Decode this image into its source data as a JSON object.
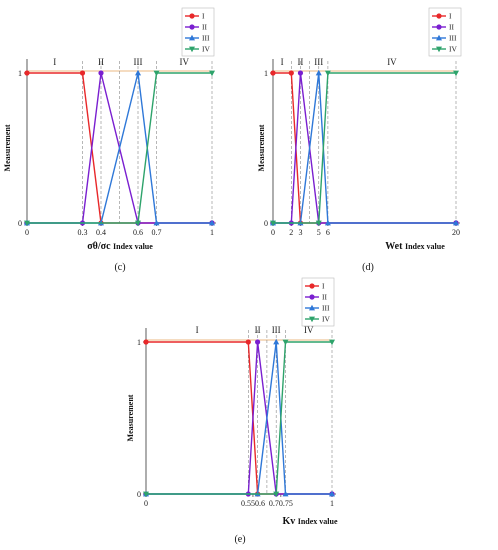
{
  "chart_data": [
    {
      "type": "line",
      "panel": "(c)",
      "ylabel": "Measurement",
      "xlabel_main": "σθ/σc",
      "xlabel_rest": "Index value",
      "x_ticks": [
        "0",
        "0.3",
        "0.4",
        "0.6",
        "0.7",
        "1"
      ],
      "x_tick_values": [
        0,
        0.3,
        0.4,
        0.6,
        0.7,
        1
      ],
      "y_ticks": [
        "0",
        "1"
      ],
      "xlim": [
        0,
        1
      ],
      "ylim": [
        0,
        1
      ],
      "regions": [
        {
          "label": "I",
          "from": 0,
          "to": 0.3
        },
        {
          "label": "II",
          "from": 0.3,
          "to": 0.5
        },
        {
          "label": "III",
          "from": 0.5,
          "to": 0.7
        },
        {
          "label": "IV",
          "from": 0.7,
          "to": 1
        }
      ],
      "dashed_x": [
        0.3,
        0.4,
        0.5,
        0.6,
        0.7,
        1
      ],
      "series": [
        {
          "name": "I",
          "color": "#e8282a",
          "marker": "circle",
          "x": [
            0,
            0.3,
            0.4,
            1
          ],
          "y": [
            1,
            1,
            0,
            0
          ]
        },
        {
          "name": "II",
          "color": "#7a1fd0",
          "marker": "circle",
          "x": [
            0,
            0.3,
            0.4,
            0.6,
            1
          ],
          "y": [
            0,
            0,
            1,
            0,
            0
          ]
        },
        {
          "name": "III",
          "color": "#2f78d8",
          "marker": "triangle",
          "x": [
            0,
            0.4,
            0.6,
            0.7,
            1
          ],
          "y": [
            0,
            0,
            1,
            0,
            0
          ]
        },
        {
          "name": "IV",
          "color": "#2ea36b",
          "marker": "triangle-down",
          "x": [
            0,
            0.6,
            0.7,
            1
          ],
          "y": [
            0,
            0,
            1,
            1
          ]
        }
      ]
    },
    {
      "type": "line",
      "panel": "(d)",
      "ylabel": "Measurement",
      "xlabel_main": "Wet",
      "xlabel_rest": "Index value",
      "x_ticks": [
        "0",
        "2",
        "3",
        "5",
        "6",
        "20"
      ],
      "x_tick_values": [
        0,
        2,
        3,
        5,
        6,
        20
      ],
      "y_ticks": [
        "0",
        "1"
      ],
      "xlim": [
        0,
        20
      ],
      "ylim": [
        0,
        1
      ],
      "regions": [
        {
          "label": "I",
          "from": 0,
          "to": 2
        },
        {
          "label": "II",
          "from": 2,
          "to": 4
        },
        {
          "label": "III",
          "from": 4,
          "to": 6
        },
        {
          "label": "IV",
          "from": 6,
          "to": 20
        }
      ],
      "dashed_x": [
        2,
        3,
        4,
        5,
        6,
        20
      ],
      "series": [
        {
          "name": "I",
          "color": "#e8282a",
          "marker": "circle",
          "x": [
            0,
            2,
            3,
            20
          ],
          "y": [
            1,
            1,
            0,
            0
          ]
        },
        {
          "name": "II",
          "color": "#7a1fd0",
          "marker": "circle",
          "x": [
            0,
            2,
            3,
            5,
            20
          ],
          "y": [
            0,
            0,
            1,
            0,
            0
          ]
        },
        {
          "name": "III",
          "color": "#2f78d8",
          "marker": "triangle",
          "x": [
            0,
            3,
            5,
            6,
            20
          ],
          "y": [
            0,
            0,
            1,
            0,
            0
          ]
        },
        {
          "name": "IV",
          "color": "#2ea36b",
          "marker": "triangle-down",
          "x": [
            0,
            5,
            6,
            20
          ],
          "y": [
            0,
            0,
            1,
            1
          ]
        }
      ]
    },
    {
      "type": "line",
      "panel": "(e)",
      "ylabel": "Measurement",
      "xlabel_main": "Kv",
      "xlabel_rest": "Index value",
      "x_ticks": [
        "0",
        "0.550.6",
        "0.70.75",
        "1"
      ],
      "x_tick_values": [
        0,
        0.575,
        0.725,
        1
      ],
      "y_ticks": [
        "0",
        "1"
      ],
      "xlim": [
        0,
        1
      ],
      "ylim": [
        0,
        1
      ],
      "regions": [
        {
          "label": "I",
          "from": 0,
          "to": 0.55
        },
        {
          "label": "II",
          "from": 0.55,
          "to": 0.65
        },
        {
          "label": "III",
          "from": 0.65,
          "to": 0.75
        },
        {
          "label": "IV",
          "from": 0.75,
          "to": 1
        }
      ],
      "dashed_x": [
        0.55,
        0.6,
        0.65,
        0.7,
        0.75,
        1
      ],
      "series": [
        {
          "name": "I",
          "color": "#e8282a",
          "marker": "circle",
          "x": [
            0,
            0.55,
            0.6,
            1
          ],
          "y": [
            1,
            1,
            0,
            0
          ]
        },
        {
          "name": "II",
          "color": "#7a1fd0",
          "marker": "circle",
          "x": [
            0,
            0.55,
            0.6,
            0.7,
            1
          ],
          "y": [
            0,
            0,
            1,
            0,
            0
          ]
        },
        {
          "name": "III",
          "color": "#2f78d8",
          "marker": "triangle",
          "x": [
            0,
            0.6,
            0.7,
            0.75,
            1
          ],
          "y": [
            0,
            0,
            1,
            0,
            0
          ]
        },
        {
          "name": "IV",
          "color": "#2ea36b",
          "marker": "triangle-down",
          "x": [
            0,
            0.7,
            0.75,
            1
          ],
          "y": [
            0,
            0,
            1,
            1
          ]
        }
      ]
    }
  ]
}
